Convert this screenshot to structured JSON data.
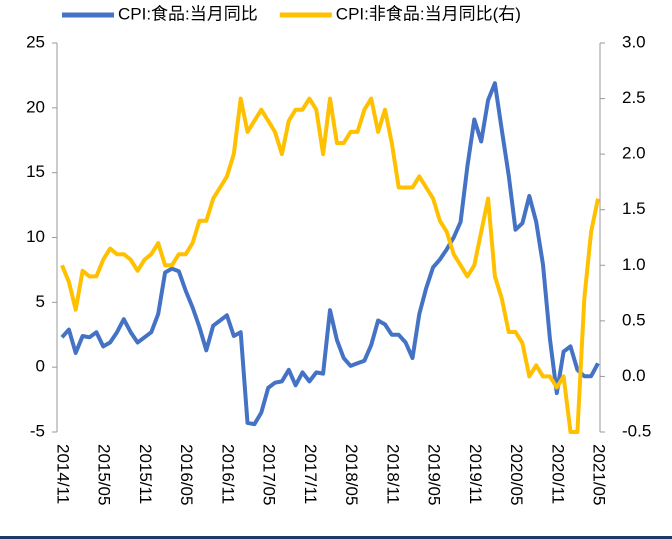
{
  "chart_data": {
    "type": "line",
    "categories": [
      "2014/11",
      null,
      null,
      null,
      null,
      null,
      "2015/05",
      null,
      null,
      null,
      null,
      null,
      "2015/11",
      null,
      null,
      null,
      null,
      null,
      "2016/05",
      null,
      null,
      null,
      null,
      null,
      "2016/11",
      null,
      null,
      null,
      null,
      null,
      "2017/05",
      null,
      null,
      null,
      null,
      null,
      "2017/11",
      null,
      null,
      null,
      null,
      null,
      "2018/05",
      null,
      null,
      null,
      null,
      null,
      "2018/11",
      null,
      null,
      null,
      null,
      null,
      "2019/05",
      null,
      null,
      null,
      null,
      null,
      "2019/11",
      null,
      null,
      null,
      null,
      null,
      "2020/05",
      null,
      null,
      null,
      null,
      null,
      "2020/11",
      null,
      null,
      null,
      null,
      null,
      "2021/05"
    ],
    "series": [
      {
        "name": "CPI:食品:当月同比",
        "color": "#4472c4",
        "axis": "y",
        "values": [
          2.3,
          2.9,
          1.1,
          2.4,
          2.3,
          2.7,
          1.6,
          1.9,
          2.7,
          3.7,
          2.7,
          1.9,
          2.3,
          2.7,
          4.1,
          7.3,
          7.6,
          7.4,
          5.9,
          4.6,
          3.1,
          1.3,
          3.2,
          3.6,
          4.0,
          2.4,
          2.7,
          -4.3,
          -4.4,
          -3.5,
          -1.6,
          -1.2,
          -1.1,
          -0.2,
          -1.4,
          -0.4,
          -1.1,
          -0.4,
          -0.5,
          4.4,
          2.1,
          0.7,
          0.1,
          0.3,
          0.5,
          1.7,
          3.6,
          3.3,
          2.5,
          2.5,
          1.9,
          0.7,
          4.1,
          6.1,
          7.7,
          8.3,
          9.1,
          10.0,
          11.2,
          15.5,
          19.1,
          17.4,
          20.6,
          21.9,
          18.3,
          14.8,
          10.6,
          11.1,
          13.2,
          11.2,
          7.9,
          2.2,
          -2.0,
          1.2,
          1.6,
          -0.2,
          -0.7,
          -0.7,
          0.3
        ]
      },
      {
        "name": "CPI:非食品:当月同比(右)",
        "color": "#ffc000",
        "axis": "y2",
        "values": [
          1.0,
          0.85,
          0.6,
          0.95,
          0.9,
          0.9,
          1.05,
          1.15,
          1.1,
          1.1,
          1.05,
          0.95,
          1.05,
          1.1,
          1.2,
          1.0,
          1.0,
          1.1,
          1.1,
          1.2,
          1.4,
          1.4,
          1.6,
          1.7,
          1.8,
          2.0,
          2.5,
          2.2,
          2.3,
          2.4,
          2.3,
          2.2,
          2.0,
          2.3,
          2.4,
          2.4,
          2.5,
          2.4,
          2.0,
          2.5,
          2.1,
          2.1,
          2.2,
          2.2,
          2.4,
          2.5,
          2.2,
          2.4,
          2.1,
          1.7,
          1.7,
          1.7,
          1.8,
          1.7,
          1.6,
          1.4,
          1.3,
          1.1,
          1.0,
          0.9,
          1.0,
          1.3,
          1.6,
          0.9,
          0.7,
          0.4,
          0.4,
          0.3,
          0.0,
          0.1,
          0.0,
          0.0,
          -0.1,
          0.0,
          -0.5,
          -0.5,
          0.7,
          1.3,
          1.6
        ]
      }
    ],
    "ylim": [
      -5,
      25
    ],
    "yticks": [
      -5,
      0,
      5,
      10,
      15,
      20,
      25
    ],
    "y2lim": [
      -0.5,
      3.0
    ],
    "y2ticks": [
      -0.5,
      {
        "value": 0.0,
        "label": "0.0"
      },
      0.5,
      {
        "value": 1.0,
        "label": "1.0"
      },
      1.5,
      {
        "value": 2.0,
        "label": "2.0"
      },
      2.5,
      {
        "value": 3.0,
        "label": "3.0"
      }
    ],
    "legend": "top"
  }
}
